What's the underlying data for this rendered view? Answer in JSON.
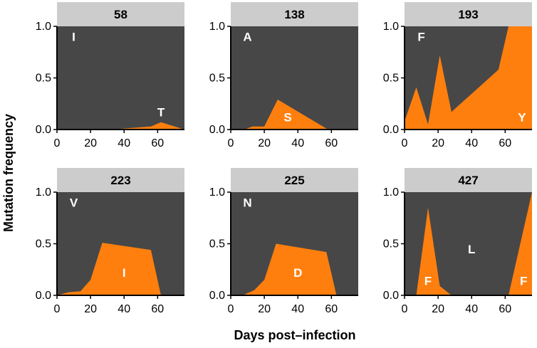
{
  "chart_data": {
    "type": "area",
    "xlabel": "Days post–infection",
    "ylabel": "Mutation frequency",
    "xlim": [
      0,
      76
    ],
    "ylim": [
      0,
      1
    ],
    "xticks": [
      "0",
      "20",
      "40",
      "60"
    ],
    "yticks": [
      "0.0",
      "0.5",
      "1.0"
    ],
    "colors": {
      "background_residue": "#474747",
      "mutant_residue": "#ff7f0e",
      "strip": "#cccccc",
      "axis": "#000000"
    },
    "panels": [
      {
        "site": "58",
        "labels": [
          {
            "text": "I",
            "x": 10,
            "y": 0.9
          },
          {
            "text": "T",
            "x": 62,
            "y": 0.17
          }
        ],
        "x": [
          0,
          32,
          56,
          62,
          76
        ],
        "y": [
          0.0,
          0.0,
          0.03,
          0.07,
          0.0
        ]
      },
      {
        "site": "138",
        "labels": [
          {
            "text": "A",
            "x": 10,
            "y": 0.9
          },
          {
            "text": "S",
            "x": 34,
            "y": 0.12
          }
        ],
        "x": [
          0,
          8,
          13,
          20,
          28,
          58
        ],
        "y": [
          0.0,
          0.0,
          0.03,
          0.03,
          0.29,
          0.0
        ]
      },
      {
        "site": "193",
        "labels": [
          {
            "text": "F",
            "x": 10,
            "y": 0.9
          },
          {
            "text": "Y",
            "x": 70,
            "y": 0.12
          }
        ],
        "x": [
          0,
          7,
          14,
          21,
          28,
          56,
          62,
          76
        ],
        "y": [
          0.08,
          0.41,
          0.05,
          0.72,
          0.17,
          0.58,
          1.0,
          1.0
        ]
      },
      {
        "site": "223",
        "labels": [
          {
            "text": "V",
            "x": 10,
            "y": 0.9
          },
          {
            "text": "I",
            "x": 40,
            "y": 0.22
          }
        ],
        "x": [
          0,
          7,
          14,
          20,
          27,
          56,
          62
        ],
        "y": [
          0.0,
          0.03,
          0.04,
          0.15,
          0.51,
          0.44,
          0.0
        ]
      },
      {
        "site": "225",
        "labels": [
          {
            "text": "N",
            "x": 10,
            "y": 0.9
          },
          {
            "text": "D",
            "x": 40,
            "y": 0.22
          }
        ],
        "x": [
          0,
          7,
          14,
          20,
          27,
          57,
          63
        ],
        "y": [
          0.0,
          0.0,
          0.05,
          0.15,
          0.5,
          0.42,
          0.0
        ]
      },
      {
        "site": "427",
        "labels": [
          {
            "text": "L",
            "x": 40,
            "y": 0.45
          },
          {
            "text": "F",
            "x": 14,
            "y": 0.14
          },
          {
            "text": "F",
            "x": 71,
            "y": 0.14
          }
        ],
        "x": [
          0,
          7,
          14,
          21,
          28,
          56,
          62,
          76
        ],
        "y": [
          0.0,
          0.0,
          0.85,
          0.09,
          0.0,
          0.0,
          0.0,
          1.0
        ]
      }
    ]
  }
}
